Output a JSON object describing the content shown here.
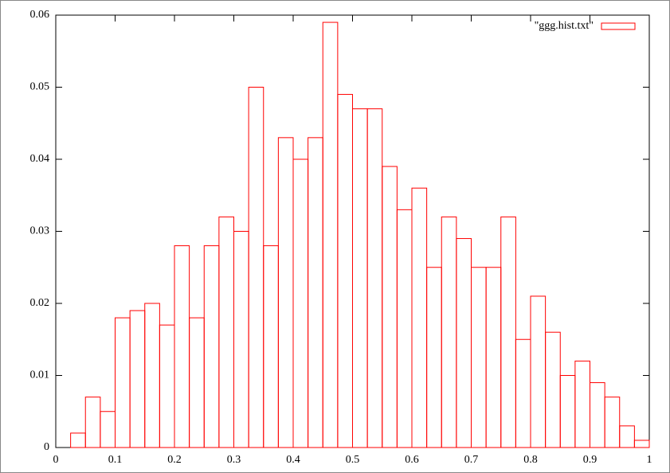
{
  "chart_data": {
    "type": "histogram",
    "bins": [
      0.025,
      0.05,
      0.075,
      0.1,
      0.125,
      0.15,
      0.175,
      0.2,
      0.225,
      0.25,
      0.275,
      0.3,
      0.325,
      0.35,
      0.375,
      0.4,
      0.425,
      0.45,
      0.475,
      0.5,
      0.525,
      0.55,
      0.575,
      0.6,
      0.625,
      0.65,
      0.675,
      0.7,
      0.725,
      0.75,
      0.775,
      0.8,
      0.825,
      0.85,
      0.875,
      0.9,
      0.925,
      0.95,
      0.975,
      1
    ],
    "series": [
      {
        "name": "\"ggg.hist.txt\"",
        "color": "#ff0000",
        "values": [
          0.002,
          0.007,
          0.005,
          0.018,
          0.019,
          0.02,
          0.017,
          0.028,
          0.018,
          0.028,
          0.032,
          0.03,
          0.05,
          0.028,
          0.043,
          0.04,
          0.043,
          0.059,
          0.049,
          0.047,
          0.047,
          0.039,
          0.033,
          0.036,
          0.025,
          0.032,
          0.029,
          0.025,
          0.025,
          0.032,
          0.015,
          0.021,
          0.016,
          0.01,
          0.012,
          0.009,
          0.007,
          0.003,
          0.001
        ]
      }
    ],
    "xlim": [
      0,
      1
    ],
    "ylim": [
      0,
      0.06
    ],
    "xticks": [
      0,
      0.1,
      0.2,
      0.3,
      0.4,
      0.5,
      0.6,
      0.7,
      0.8,
      0.9,
      1
    ],
    "yticks": [
      0,
      0.01,
      0.02,
      0.03,
      0.04,
      0.05,
      0.06
    ],
    "legend": "top-right"
  }
}
